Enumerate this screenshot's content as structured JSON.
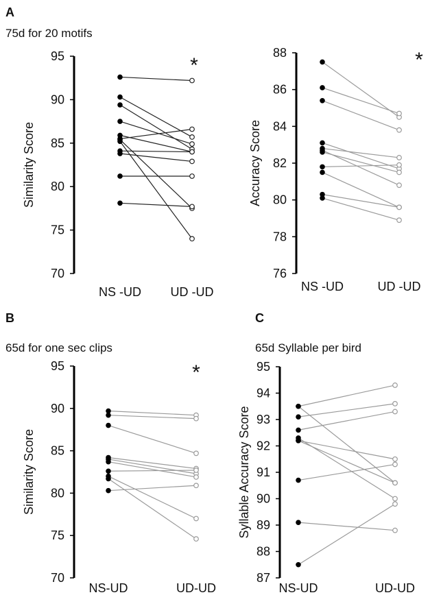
{
  "colors": {
    "dark": "#222222",
    "light": "#9a9a9a",
    "open_fill": "#ffffff",
    "axis": "#000000"
  },
  "panels": {
    "a": {
      "letter": "A",
      "title": "75d for 20 motifs"
    },
    "b": {
      "letter": "B",
      "title": "65d for one sec clips"
    },
    "c": {
      "letter": "C",
      "title": "65d Syllable per bird"
    }
  },
  "chart_data": [
    {
      "type": "line",
      "panel": "A",
      "ylabel": "Similarity Score",
      "categories": [
        "NS -UD",
        "UD -UD"
      ],
      "ylim": [
        70,
        95
      ],
      "yticks": [
        70,
        75,
        80,
        85,
        90,
        95
      ],
      "significance": "*",
      "line_tone": "dark",
      "pairs": [
        [
          92.6,
          92.2
        ],
        [
          90.3,
          85.7
        ],
        [
          89.4,
          84.3
        ],
        [
          87.5,
          84.9
        ],
        [
          85.9,
          84.0
        ],
        [
          85.5,
          86.6
        ],
        [
          85.4,
          77.5
        ],
        [
          85.2,
          74.0
        ],
        [
          84.1,
          84.0
        ],
        [
          83.8,
          82.9
        ],
        [
          81.2,
          81.2
        ],
        [
          78.1,
          77.7
        ]
      ]
    },
    {
      "type": "line",
      "panel": "A",
      "ylabel": "Accuracy Score",
      "categories": [
        "NS -UD",
        "UD -UD"
      ],
      "ylim": [
        76,
        88
      ],
      "yticks": [
        76,
        78,
        80,
        82,
        84,
        86,
        88
      ],
      "significance": "*",
      "line_tone": "light",
      "pairs": [
        [
          87.5,
          84.5
        ],
        [
          86.1,
          84.7
        ],
        [
          85.4,
          83.8
        ],
        [
          83.1,
          81.7
        ],
        [
          82.8,
          82.3
        ],
        [
          82.7,
          80.8
        ],
        [
          82.6,
          81.5
        ],
        [
          81.8,
          81.9
        ],
        [
          81.5,
          79.6
        ],
        [
          80.3,
          79.6
        ],
        [
          80.1,
          78.9
        ]
      ]
    },
    {
      "type": "line",
      "panel": "B",
      "ylabel": "Similarity Score",
      "categories": [
        "NS-UD",
        "UD-UD"
      ],
      "ylim": [
        70,
        95
      ],
      "yticks": [
        70,
        75,
        80,
        85,
        90,
        95
      ],
      "significance": "*",
      "line_tone": "light",
      "pairs": [
        [
          89.7,
          89.2
        ],
        [
          89.2,
          88.8
        ],
        [
          88.0,
          84.7
        ],
        [
          84.2,
          82.9
        ],
        [
          84.0,
          82.3
        ],
        [
          83.7,
          81.9
        ],
        [
          82.6,
          82.7
        ],
        [
          82.0,
          77.0
        ],
        [
          81.7,
          74.6
        ],
        [
          80.3,
          80.9
        ]
      ]
    },
    {
      "type": "line",
      "panel": "C",
      "ylabel": "Syllable Accuracy Score",
      "categories": [
        "NS-UD",
        "UD-UD"
      ],
      "ylim": [
        87,
        95
      ],
      "yticks": [
        87,
        88,
        89,
        90,
        91,
        92,
        93,
        94,
        95
      ],
      "significance": "",
      "line_tone": "light",
      "pairs": [
        [
          93.5,
          94.3
        ],
        [
          93.5,
          90.6
        ],
        [
          93.1,
          93.6
        ],
        [
          92.6,
          93.3
        ],
        [
          92.3,
          90.0
        ],
        [
          92.2,
          91.5
        ],
        [
          92.2,
          90.6
        ],
        [
          90.7,
          91.3
        ],
        [
          89.1,
          88.8
        ],
        [
          87.5,
          89.8
        ]
      ]
    }
  ]
}
